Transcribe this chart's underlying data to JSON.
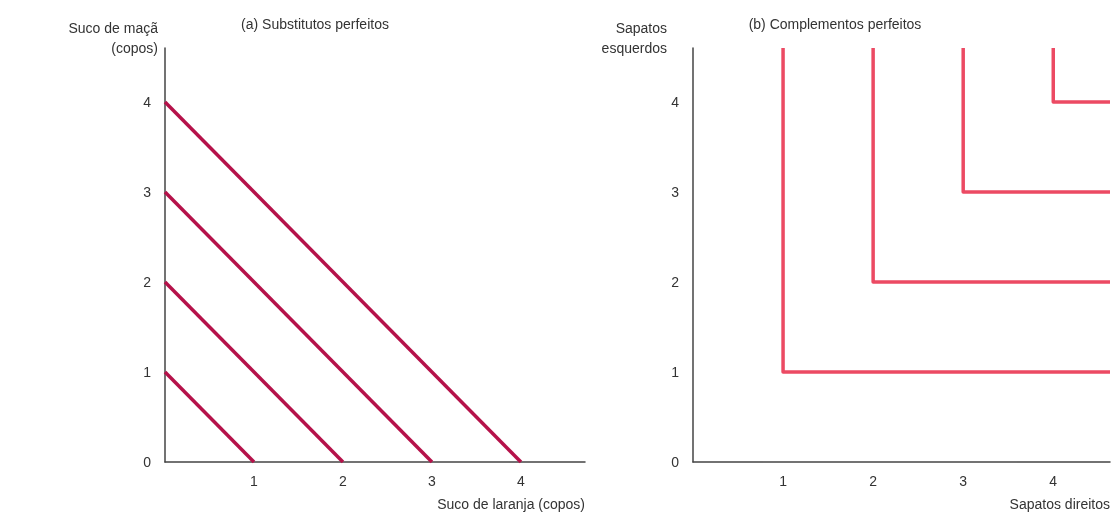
{
  "chart_data": [
    {
      "type": "line",
      "title": "(a) Substitutos perfeitos",
      "xlabel": "Suco de laranja (copos)",
      "ylabel": "Suco de maçã\n(copos)",
      "xlim": [
        0,
        4.72
      ],
      "ylim": [
        0,
        4.6
      ],
      "xticks": [
        1,
        2,
        3,
        4
      ],
      "yticks": [
        0,
        1,
        2,
        3,
        4
      ],
      "grid": false,
      "marker": "none",
      "line_style": "solid",
      "series": [
        {
          "color": "#b5124a",
          "x": [
            0,
            1
          ],
          "values": [
            1,
            0
          ]
        },
        {
          "color": "#b5124a",
          "x": [
            0,
            2
          ],
          "values": [
            2,
            0
          ]
        },
        {
          "color": "#b5124a",
          "x": [
            0,
            3
          ],
          "values": [
            3,
            0
          ]
        },
        {
          "color": "#b5124a",
          "x": [
            0,
            4
          ],
          "values": [
            4,
            0
          ]
        }
      ]
    },
    {
      "type": "line",
      "title": "(b) Complementos perfeitos",
      "xlabel": "Sapatos direitos",
      "ylabel": "Sapatos\nesquerdos",
      "xlim": [
        0,
        4.63
      ],
      "ylim": [
        0,
        4.6
      ],
      "xticks": [
        1,
        2,
        3,
        4
      ],
      "yticks": [
        0,
        1,
        2,
        3,
        4
      ],
      "grid": false,
      "marker": "none",
      "line_style": "solid",
      "series": [
        {
          "color": "#ec4a63",
          "x": [
            1,
            1,
            4.63
          ],
          "values": [
            4.6,
            1,
            1
          ]
        },
        {
          "color": "#ec4a63",
          "x": [
            2,
            2,
            4.63
          ],
          "values": [
            4.6,
            2,
            2
          ]
        },
        {
          "color": "#ec4a63",
          "x": [
            3,
            3,
            4.63
          ],
          "values": [
            4.6,
            3,
            3
          ]
        },
        {
          "color": "#ec4a63",
          "x": [
            4,
            4,
            4.63
          ],
          "values": [
            4.6,
            4,
            4
          ]
        }
      ]
    }
  ]
}
